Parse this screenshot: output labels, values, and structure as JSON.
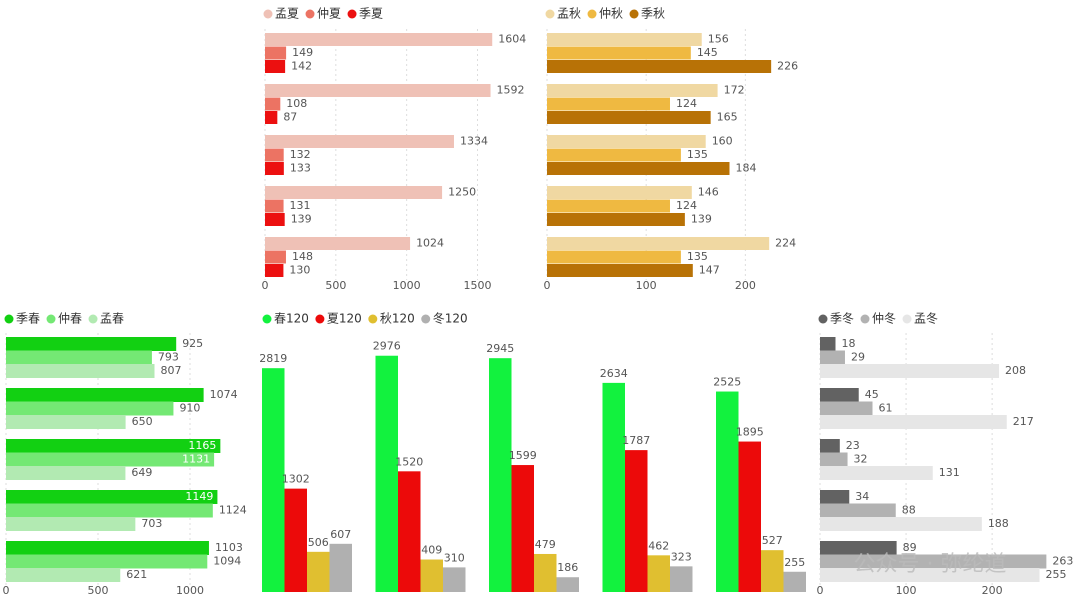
{
  "watermark": "公众号 · 弥纶道",
  "chart_data": [
    {
      "type": "hbar",
      "categories": [
        null,
        null,
        null,
        null,
        null
      ],
      "series": [
        {
          "name": "孟夏",
          "color": "#efc1b6",
          "values": [
            1604,
            1592,
            1334,
            1250,
            1024
          ]
        },
        {
          "name": "仲夏",
          "color": "#ec7363",
          "values": [
            149,
            108,
            132,
            131,
            148
          ]
        },
        {
          "name": "季夏",
          "color": "#ec1010",
          "values": [
            142,
            87,
            133,
            139,
            130
          ]
        }
      ],
      "xlim": [
        0,
        1800
      ],
      "xticks": [
        0,
        500,
        1000,
        1500
      ],
      "grid": true
    },
    {
      "type": "hbar",
      "categories": [
        null,
        null,
        null,
        null,
        null
      ],
      "series": [
        {
          "name": "孟秋",
          "color": "#f0d8a2",
          "values": [
            156,
            172,
            160,
            146,
            224
          ]
        },
        {
          "name": "仲秋",
          "color": "#efb941",
          "values": [
            145,
            124,
            135,
            124,
            135
          ]
        },
        {
          "name": "季秋",
          "color": "#b87206",
          "values": [
            226,
            165,
            184,
            139,
            147
          ]
        }
      ],
      "xlim": [
        0,
        245
      ],
      "xticks": [
        0,
        100,
        200
      ],
      "grid": true
    },
    {
      "type": "hbar",
      "categories": [
        null,
        null,
        null,
        null,
        null
      ],
      "series": [
        {
          "name": "季春",
          "color": "#12d012",
          "values": [
            925,
            1074,
            1165,
            1149,
            1103
          ]
        },
        {
          "name": "仲春",
          "color": "#74e874",
          "values": [
            793,
            910,
            1131,
            1124,
            1094
          ]
        },
        {
          "name": "孟春",
          "color": "#b2eab2",
          "values": [
            807,
            650,
            649,
            703,
            621
          ]
        }
      ],
      "xlim": [
        0,
        1250
      ],
      "xticks": [
        0,
        500,
        1000
      ],
      "grid": true
    },
    {
      "type": "vbar",
      "categories": [
        null,
        null,
        null,
        null,
        null
      ],
      "series": [
        {
          "name": "春120",
          "color": "#12f23e",
          "values": [
            2819,
            2976,
            2945,
            2634,
            2525
          ]
        },
        {
          "name": "夏120",
          "color": "#ec0a0a",
          "values": [
            1302,
            1520,
            1599,
            1787,
            1895
          ]
        },
        {
          "name": "秋120",
          "color": "#e0bf30",
          "values": [
            506,
            409,
            479,
            462,
            527
          ]
        },
        {
          "name": "冬120",
          "color": "#b0b0b0",
          "values": [
            607,
            310,
            186,
            323,
            255
          ]
        }
      ],
      "ylim": [
        0,
        3300
      ]
    },
    {
      "type": "hbar",
      "categories": [
        null,
        null,
        null,
        null,
        null
      ],
      "series": [
        {
          "name": "季冬",
          "color": "#626262",
          "values": [
            18,
            45,
            23,
            34,
            89
          ]
        },
        {
          "name": "仲冬",
          "color": "#b2b2b2",
          "values": [
            29,
            61,
            32,
            88,
            263
          ]
        },
        {
          "name": "孟冬",
          "color": "#e6e6e6",
          "values": [
            208,
            217,
            131,
            188,
            255
          ]
        }
      ],
      "xlim": [
        0,
        280
      ],
      "xticks": [
        0,
        100,
        200
      ],
      "grid": true
    }
  ]
}
